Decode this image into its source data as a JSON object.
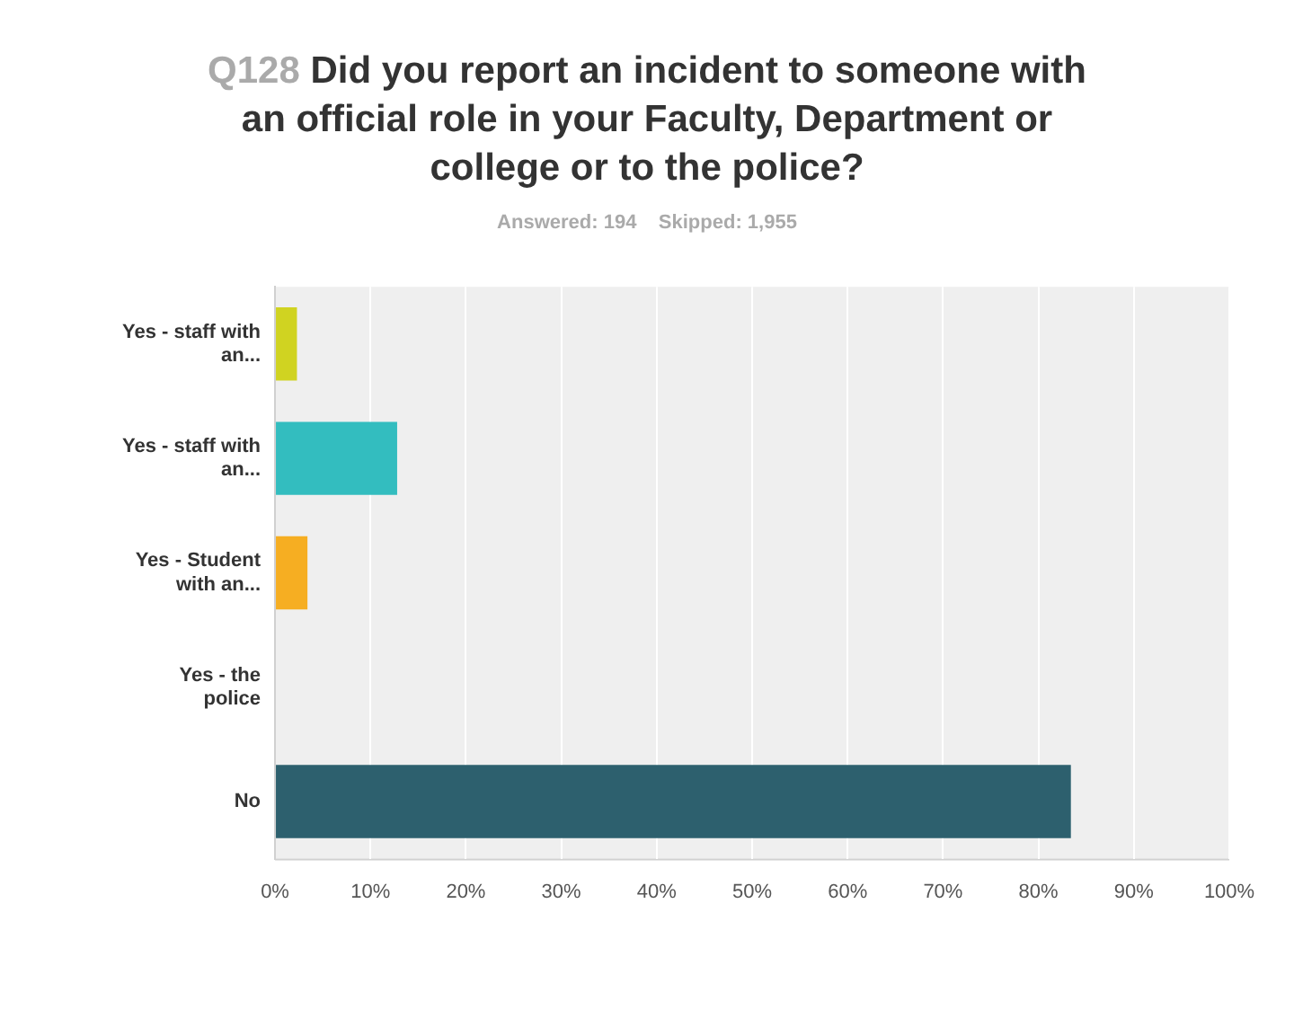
{
  "chart_data": {
    "type": "bar",
    "orientation": "horizontal",
    "title": "Q128 Did you report an incident to someone with an official role in your Faculty, Department or college or to the police?",
    "subtitle": "Answered: 194    Skipped: 1,955",
    "categories": [
      "Yes - staff with an...",
      "Yes - staff with an...",
      "Yes - Student with an...",
      "Yes - the police",
      "No"
    ],
    "values": [
      2.3,
      12.8,
      3.4,
      0,
      83.4
    ],
    "colors": [
      "#d0d321",
      "#33bdbf",
      "#f6ae22",
      "#2d606e",
      "#2d606e"
    ],
    "xlim": [
      0,
      100
    ],
    "xticks": [
      {
        "value": 0,
        "label": "0%"
      },
      {
        "value": 10,
        "label": "10%"
      },
      {
        "value": 20,
        "label": "20%"
      },
      {
        "value": 30,
        "label": "30%"
      },
      {
        "value": 40,
        "label": "40%"
      },
      {
        "value": 50,
        "label": "50%"
      },
      {
        "value": 60,
        "label": "60%"
      },
      {
        "value": 70,
        "label": "70%"
      },
      {
        "value": 80,
        "label": "80%"
      },
      {
        "value": 90,
        "label": "90%"
      },
      {
        "value": 100,
        "label": "100%"
      }
    ],
    "grid": "x",
    "legend": false
  }
}
